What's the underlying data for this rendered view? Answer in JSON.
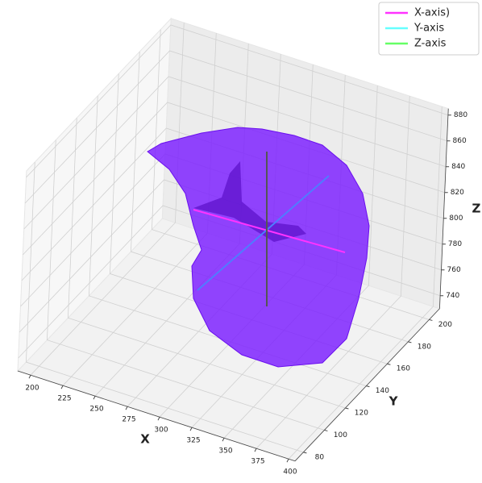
{
  "chart_data": {
    "type": "surface3d",
    "x_label": "X",
    "y_label": "Y",
    "z_label": "Z",
    "xlim": [
      190,
      405
    ],
    "ylim": [
      72,
      210
    ],
    "zlim": [
      730,
      885
    ],
    "xticks": [
      200,
      225,
      250,
      275,
      300,
      325,
      350,
      375,
      400
    ],
    "yticks": [
      80,
      100,
      120,
      140,
      160,
      180,
      200
    ],
    "zticks": [
      740,
      760,
      780,
      800,
      820,
      840,
      860,
      880
    ],
    "grid": true,
    "legend": "upper right",
    "series": [
      {
        "name": "X-axis)",
        "color": "#ff33ff"
      },
      {
        "name": "Y-axis",
        "color": "#66ffff"
      },
      {
        "name": "Z-axis",
        "color": "#66ff66"
      }
    ]
  }
}
